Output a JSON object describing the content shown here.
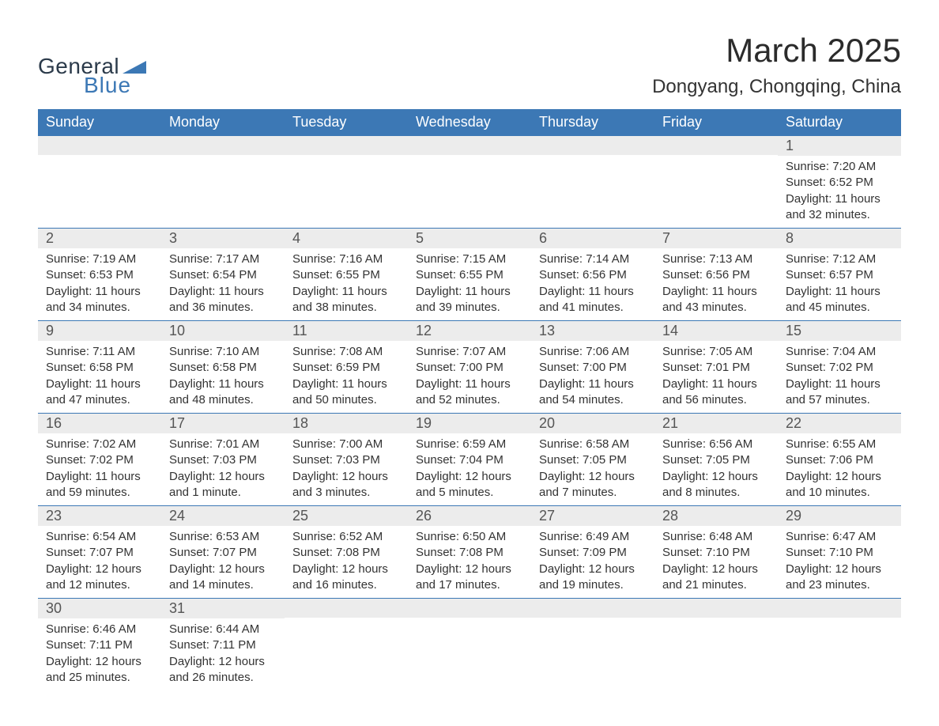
{
  "brand": {
    "word1": "General",
    "word2": "Blue",
    "accent_color": "#3c78b5",
    "text_color": "#2b3a4a"
  },
  "header": {
    "month_title": "March 2025",
    "location": "Dongyang, Chongqing, China"
  },
  "calendar": {
    "type": "table",
    "columns": [
      "Sunday",
      "Monday",
      "Tuesday",
      "Wednesday",
      "Thursday",
      "Friday",
      "Saturday"
    ],
    "header_bg": "#3c78b5",
    "header_fg": "#ffffff",
    "daynum_bg": "#ececec",
    "row_border_color": "#3c78b5",
    "text_color": "#333333",
    "weeks": [
      [
        {
          "empty": true
        },
        {
          "empty": true
        },
        {
          "empty": true
        },
        {
          "empty": true
        },
        {
          "empty": true
        },
        {
          "empty": true
        },
        {
          "day": "1",
          "sunrise": "Sunrise: 7:20 AM",
          "sunset": "Sunset: 6:52 PM",
          "daylight1": "Daylight: 11 hours",
          "daylight2": "and 32 minutes."
        }
      ],
      [
        {
          "day": "2",
          "sunrise": "Sunrise: 7:19 AM",
          "sunset": "Sunset: 6:53 PM",
          "daylight1": "Daylight: 11 hours",
          "daylight2": "and 34 minutes."
        },
        {
          "day": "3",
          "sunrise": "Sunrise: 7:17 AM",
          "sunset": "Sunset: 6:54 PM",
          "daylight1": "Daylight: 11 hours",
          "daylight2": "and 36 minutes."
        },
        {
          "day": "4",
          "sunrise": "Sunrise: 7:16 AM",
          "sunset": "Sunset: 6:55 PM",
          "daylight1": "Daylight: 11 hours",
          "daylight2": "and 38 minutes."
        },
        {
          "day": "5",
          "sunrise": "Sunrise: 7:15 AM",
          "sunset": "Sunset: 6:55 PM",
          "daylight1": "Daylight: 11 hours",
          "daylight2": "and 39 minutes."
        },
        {
          "day": "6",
          "sunrise": "Sunrise: 7:14 AM",
          "sunset": "Sunset: 6:56 PM",
          "daylight1": "Daylight: 11 hours",
          "daylight2": "and 41 minutes."
        },
        {
          "day": "7",
          "sunrise": "Sunrise: 7:13 AM",
          "sunset": "Sunset: 6:56 PM",
          "daylight1": "Daylight: 11 hours",
          "daylight2": "and 43 minutes."
        },
        {
          "day": "8",
          "sunrise": "Sunrise: 7:12 AM",
          "sunset": "Sunset: 6:57 PM",
          "daylight1": "Daylight: 11 hours",
          "daylight2": "and 45 minutes."
        }
      ],
      [
        {
          "day": "9",
          "sunrise": "Sunrise: 7:11 AM",
          "sunset": "Sunset: 6:58 PM",
          "daylight1": "Daylight: 11 hours",
          "daylight2": "and 47 minutes."
        },
        {
          "day": "10",
          "sunrise": "Sunrise: 7:10 AM",
          "sunset": "Sunset: 6:58 PM",
          "daylight1": "Daylight: 11 hours",
          "daylight2": "and 48 minutes."
        },
        {
          "day": "11",
          "sunrise": "Sunrise: 7:08 AM",
          "sunset": "Sunset: 6:59 PM",
          "daylight1": "Daylight: 11 hours",
          "daylight2": "and 50 minutes."
        },
        {
          "day": "12",
          "sunrise": "Sunrise: 7:07 AM",
          "sunset": "Sunset: 7:00 PM",
          "daylight1": "Daylight: 11 hours",
          "daylight2": "and 52 minutes."
        },
        {
          "day": "13",
          "sunrise": "Sunrise: 7:06 AM",
          "sunset": "Sunset: 7:00 PM",
          "daylight1": "Daylight: 11 hours",
          "daylight2": "and 54 minutes."
        },
        {
          "day": "14",
          "sunrise": "Sunrise: 7:05 AM",
          "sunset": "Sunset: 7:01 PM",
          "daylight1": "Daylight: 11 hours",
          "daylight2": "and 56 minutes."
        },
        {
          "day": "15",
          "sunrise": "Sunrise: 7:04 AM",
          "sunset": "Sunset: 7:02 PM",
          "daylight1": "Daylight: 11 hours",
          "daylight2": "and 57 minutes."
        }
      ],
      [
        {
          "day": "16",
          "sunrise": "Sunrise: 7:02 AM",
          "sunset": "Sunset: 7:02 PM",
          "daylight1": "Daylight: 11 hours",
          "daylight2": "and 59 minutes."
        },
        {
          "day": "17",
          "sunrise": "Sunrise: 7:01 AM",
          "sunset": "Sunset: 7:03 PM",
          "daylight1": "Daylight: 12 hours",
          "daylight2": "and 1 minute."
        },
        {
          "day": "18",
          "sunrise": "Sunrise: 7:00 AM",
          "sunset": "Sunset: 7:03 PM",
          "daylight1": "Daylight: 12 hours",
          "daylight2": "and 3 minutes."
        },
        {
          "day": "19",
          "sunrise": "Sunrise: 6:59 AM",
          "sunset": "Sunset: 7:04 PM",
          "daylight1": "Daylight: 12 hours",
          "daylight2": "and 5 minutes."
        },
        {
          "day": "20",
          "sunrise": "Sunrise: 6:58 AM",
          "sunset": "Sunset: 7:05 PM",
          "daylight1": "Daylight: 12 hours",
          "daylight2": "and 7 minutes."
        },
        {
          "day": "21",
          "sunrise": "Sunrise: 6:56 AM",
          "sunset": "Sunset: 7:05 PM",
          "daylight1": "Daylight: 12 hours",
          "daylight2": "and 8 minutes."
        },
        {
          "day": "22",
          "sunrise": "Sunrise: 6:55 AM",
          "sunset": "Sunset: 7:06 PM",
          "daylight1": "Daylight: 12 hours",
          "daylight2": "and 10 minutes."
        }
      ],
      [
        {
          "day": "23",
          "sunrise": "Sunrise: 6:54 AM",
          "sunset": "Sunset: 7:07 PM",
          "daylight1": "Daylight: 12 hours",
          "daylight2": "and 12 minutes."
        },
        {
          "day": "24",
          "sunrise": "Sunrise: 6:53 AM",
          "sunset": "Sunset: 7:07 PM",
          "daylight1": "Daylight: 12 hours",
          "daylight2": "and 14 minutes."
        },
        {
          "day": "25",
          "sunrise": "Sunrise: 6:52 AM",
          "sunset": "Sunset: 7:08 PM",
          "daylight1": "Daylight: 12 hours",
          "daylight2": "and 16 minutes."
        },
        {
          "day": "26",
          "sunrise": "Sunrise: 6:50 AM",
          "sunset": "Sunset: 7:08 PM",
          "daylight1": "Daylight: 12 hours",
          "daylight2": "and 17 minutes."
        },
        {
          "day": "27",
          "sunrise": "Sunrise: 6:49 AM",
          "sunset": "Sunset: 7:09 PM",
          "daylight1": "Daylight: 12 hours",
          "daylight2": "and 19 minutes."
        },
        {
          "day": "28",
          "sunrise": "Sunrise: 6:48 AM",
          "sunset": "Sunset: 7:10 PM",
          "daylight1": "Daylight: 12 hours",
          "daylight2": "and 21 minutes."
        },
        {
          "day": "29",
          "sunrise": "Sunrise: 6:47 AM",
          "sunset": "Sunset: 7:10 PM",
          "daylight1": "Daylight: 12 hours",
          "daylight2": "and 23 minutes."
        }
      ],
      [
        {
          "day": "30",
          "sunrise": "Sunrise: 6:46 AM",
          "sunset": "Sunset: 7:11 PM",
          "daylight1": "Daylight: 12 hours",
          "daylight2": "and 25 minutes."
        },
        {
          "day": "31",
          "sunrise": "Sunrise: 6:44 AM",
          "sunset": "Sunset: 7:11 PM",
          "daylight1": "Daylight: 12 hours",
          "daylight2": "and 26 minutes."
        },
        {
          "empty": true
        },
        {
          "empty": true
        },
        {
          "empty": true
        },
        {
          "empty": true
        },
        {
          "empty": true
        }
      ]
    ]
  }
}
